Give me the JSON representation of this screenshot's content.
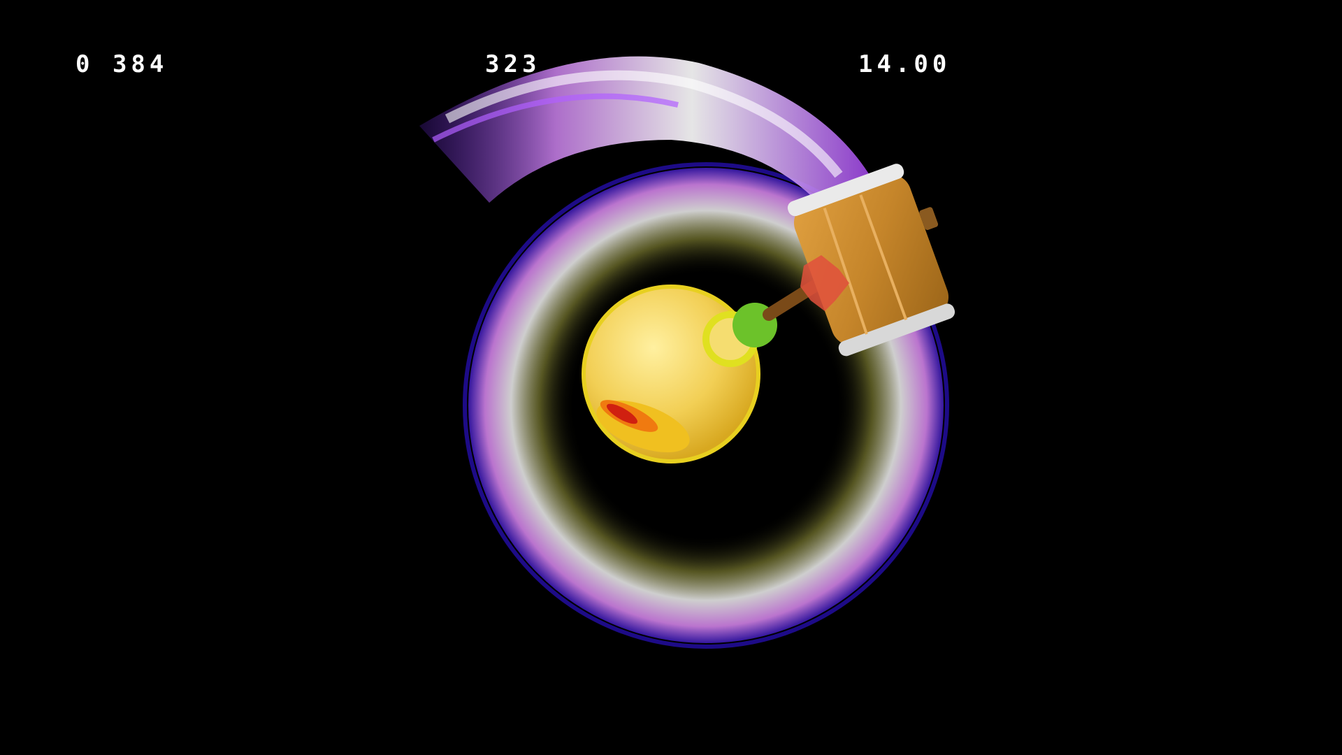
{
  "hud": {
    "left_readout": "0 384",
    "center_readout": "323",
    "right_readout": "14.00"
  },
  "colors": {
    "background": "#000000",
    "hud_text": "#ffffff",
    "trail_purple": "#8a2be2",
    "trail_white": "#f2eef6",
    "trail_olive": "#9a9a3c",
    "character_yellow": "#f5d35a",
    "hammer_wood": "#c98a2e",
    "hammer_band": "#e8e8e8",
    "handle_green": "#6cc22a",
    "impact_red": "#e0503c"
  },
  "scene": {
    "character": "yellow-round-character",
    "weapon": "wooden-hammer",
    "effect": "spin-attack-trail"
  }
}
